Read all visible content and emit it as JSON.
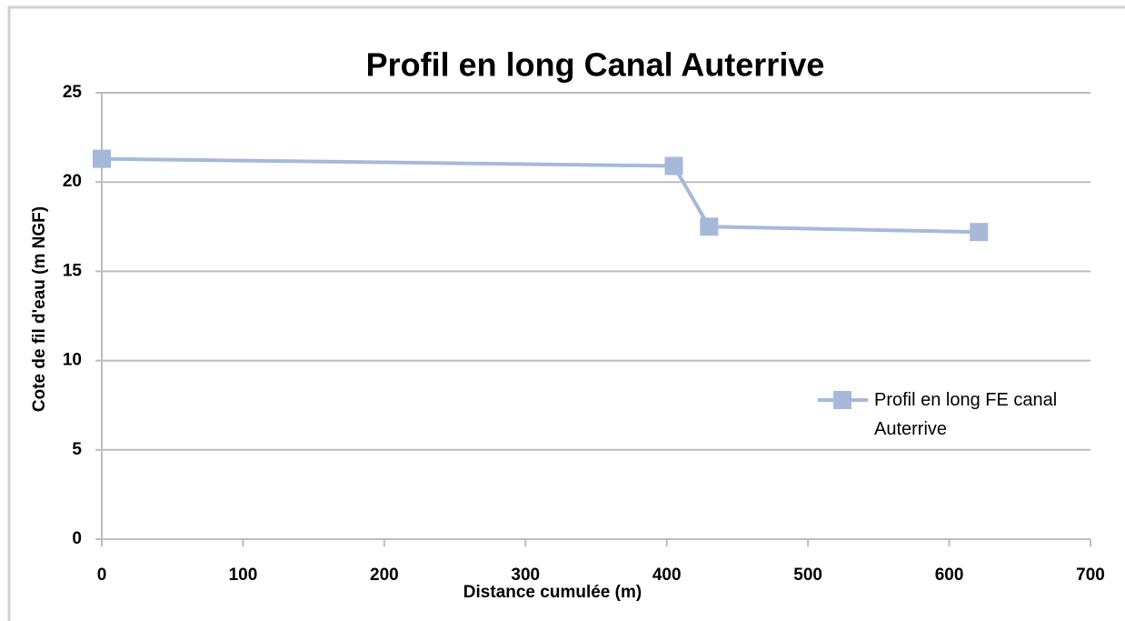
{
  "chart_data": {
    "type": "line",
    "title": "Profil en long Canal Auterrive",
    "x_label": "Distance cumulée (m)",
    "y_label": "Cote de fil d'eau (m NGF)",
    "x": [
      0,
      405,
      430,
      621
    ],
    "series": [
      {
        "name": "Profil en long FE canal Auterrive",
        "color": "#a6b9da",
        "values": [
          21.3,
          20.9,
          17.5,
          17.2
        ]
      }
    ],
    "xlim": [
      0,
      700
    ],
    "xticks": [
      0,
      100,
      200,
      300,
      400,
      500,
      600,
      700
    ],
    "ylim": [
      0,
      25
    ],
    "yticks": [
      0,
      5,
      10,
      15,
      20,
      25
    ],
    "grid": true,
    "legend": "right"
  }
}
